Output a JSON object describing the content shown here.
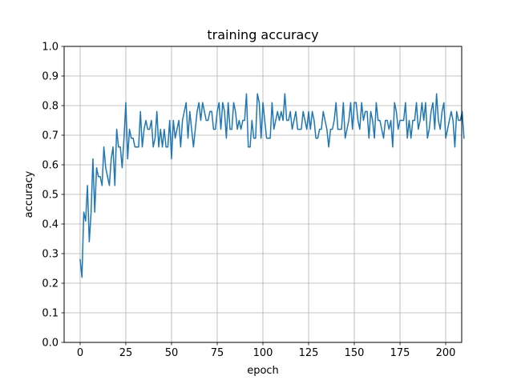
{
  "chart_data": {
    "type": "line",
    "title": "training accuracy",
    "xlabel": "epoch",
    "ylabel": "accuracy",
    "xlim": [
      -8.75,
      208.75
    ],
    "ylim": [
      0.0,
      1.0
    ],
    "grid": true,
    "x_ticks": [
      0,
      25,
      50,
      75,
      100,
      125,
      150,
      175,
      200
    ],
    "y_ticks": [
      0.0,
      0.1,
      0.2,
      0.3,
      0.4,
      0.5,
      0.6,
      0.7,
      0.8,
      0.9,
      1.0
    ],
    "x_tick_labels": [
      "0",
      "25",
      "50",
      "75",
      "100",
      "125",
      "150",
      "175",
      "200"
    ],
    "y_tick_labels": [
      "0.0",
      "0.1",
      "0.2",
      "0.3",
      "0.4",
      "0.5",
      "0.6",
      "0.7",
      "0.8",
      "0.9",
      "1.0"
    ],
    "series": [
      {
        "color": "#1f77b4",
        "x_start": 0,
        "values": [
          0.28,
          0.22,
          0.44,
          0.41,
          0.53,
          0.34,
          0.44,
          0.62,
          0.44,
          0.59,
          0.56,
          0.56,
          0.53,
          0.66,
          0.59,
          0.56,
          0.53,
          0.62,
          0.66,
          0.53,
          0.72,
          0.66,
          0.66,
          0.59,
          0.69,
          0.81,
          0.62,
          0.72,
          0.69,
          0.69,
          0.66,
          0.66,
          0.66,
          0.78,
          0.66,
          0.72,
          0.75,
          0.72,
          0.72,
          0.75,
          0.66,
          0.69,
          0.78,
          0.66,
          0.72,
          0.66,
          0.72,
          0.66,
          0.66,
          0.75,
          0.62,
          0.75,
          0.69,
          0.72,
          0.75,
          0.66,
          0.75,
          0.78,
          0.81,
          0.69,
          0.78,
          0.72,
          0.66,
          0.72,
          0.78,
          0.81,
          0.75,
          0.81,
          0.78,
          0.75,
          0.75,
          0.78,
          0.78,
          0.72,
          0.72,
          0.78,
          0.81,
          0.72,
          0.81,
          0.78,
          0.69,
          0.81,
          0.72,
          0.72,
          0.81,
          0.78,
          0.72,
          0.75,
          0.72,
          0.75,
          0.75,
          0.84,
          0.66,
          0.66,
          0.75,
          0.69,
          0.69,
          0.84,
          0.81,
          0.69,
          0.81,
          0.75,
          0.69,
          0.69,
          0.69,
          0.81,
          0.72,
          0.75,
          0.78,
          0.75,
          0.78,
          0.75,
          0.84,
          0.75,
          0.75,
          0.78,
          0.72,
          0.75,
          0.78,
          0.72,
          0.72,
          0.72,
          0.78,
          0.75,
          0.72,
          0.78,
          0.72,
          0.78,
          0.75,
          0.69,
          0.69,
          0.72,
          0.72,
          0.78,
          0.75,
          0.72,
          0.66,
          0.72,
          0.72,
          0.75,
          0.81,
          0.72,
          0.72,
          0.72,
          0.81,
          0.69,
          0.72,
          0.75,
          0.81,
          0.72,
          0.81,
          0.81,
          0.75,
          0.72,
          0.81,
          0.75,
          0.78,
          0.78,
          0.69,
          0.78,
          0.75,
          0.69,
          0.81,
          0.75,
          0.75,
          0.72,
          0.69,
          0.75,
          0.75,
          0.72,
          0.75,
          0.66,
          0.81,
          0.78,
          0.72,
          0.75,
          0.75,
          0.75,
          0.81,
          0.69,
          0.75,
          0.69,
          0.75,
          0.75,
          0.81,
          0.72,
          0.75,
          0.81,
          0.75,
          0.81,
          0.69,
          0.72,
          0.78,
          0.81,
          0.72,
          0.84,
          0.75,
          0.72,
          0.78,
          0.81,
          0.69,
          0.72,
          0.75,
          0.78,
          0.75,
          0.66,
          0.78,
          0.75,
          0.75,
          0.78,
          0.69
        ]
      }
    ]
  }
}
